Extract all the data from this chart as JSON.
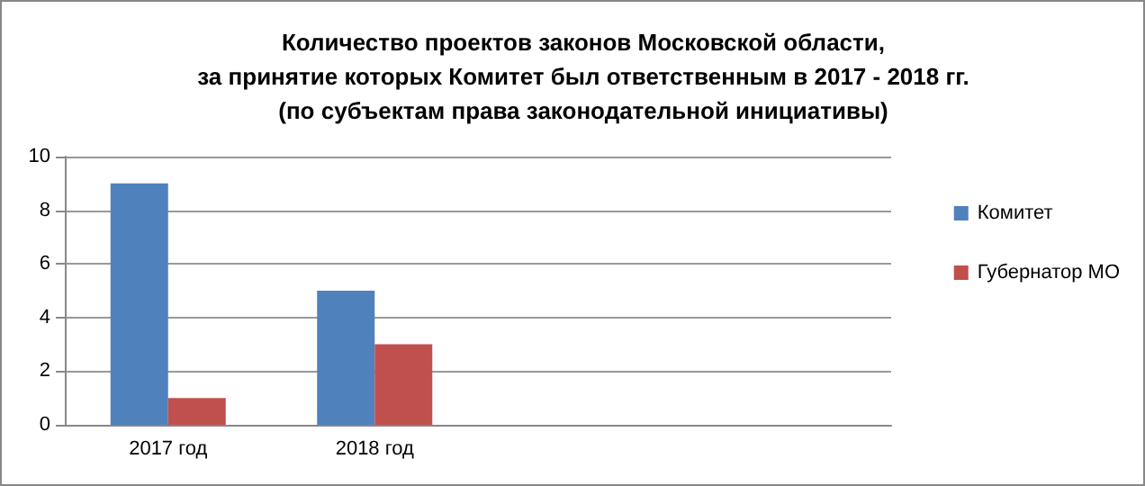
{
  "chart_data": {
    "type": "bar",
    "title": "Количество проектов законов Московской области,\nза принятие которых Комитет был ответственным в 2017 - 2018 гг.\n(по субъектам права законодательной инициативы)",
    "categories": [
      "2017 год",
      "2018 год",
      null,
      null
    ],
    "series": [
      {
        "name": "Комитет",
        "color": "#4f81bd",
        "values": [
          9,
          5,
          null,
          null
        ]
      },
      {
        "name": "Губернатор МО",
        "color": "#c0504d",
        "values": [
          1,
          3,
          null,
          null
        ]
      }
    ],
    "ylim": [
      0,
      10
    ],
    "yticks": [
      0,
      2,
      4,
      6,
      8,
      10
    ],
    "grid": "y",
    "legend": "right"
  }
}
